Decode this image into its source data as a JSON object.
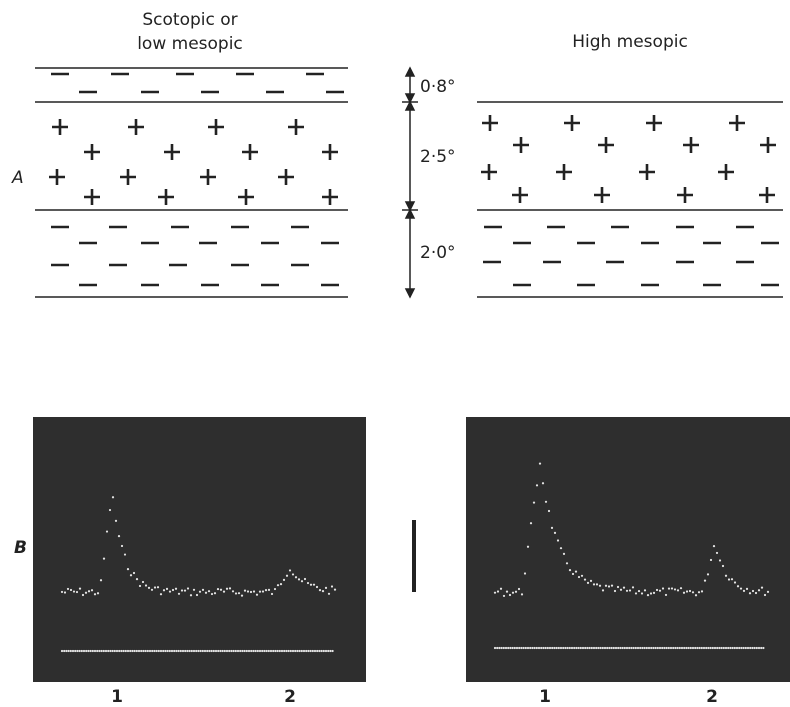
{
  "panel_a": {
    "label": "A",
    "left_title_lines": [
      "Scotopic or",
      "low mesopic"
    ],
    "right_title": "High mesopic",
    "dimensions": [
      "0·8°",
      "2·5°",
      "2·0°"
    ]
  },
  "panel_b": {
    "label": "B",
    "left_ticks": [
      "1",
      "2"
    ],
    "right_ticks": [
      "1",
      "2"
    ]
  }
}
